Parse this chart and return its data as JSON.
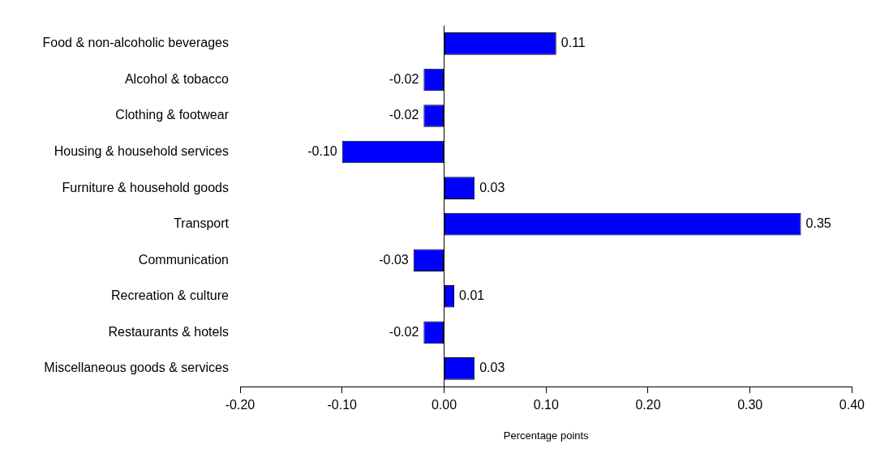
{
  "chart_data": {
    "type": "bar",
    "orientation": "horizontal",
    "xlabel": "Percentage points",
    "categories": [
      "Food & non-alcoholic beverages",
      "Alcohol & tobacco",
      "Clothing & footwear",
      "Housing & household services",
      "Furniture & household goods",
      "Transport",
      "Communication",
      "Recreation & culture",
      "Restaurants & hotels",
      "Miscellaneous goods & services"
    ],
    "values": [
      0.11,
      -0.02,
      -0.02,
      -0.1,
      0.03,
      0.35,
      -0.03,
      0.01,
      -0.02,
      0.03
    ],
    "value_labels": [
      "0.11",
      "-0.02",
      "-0.02",
      "-0.10",
      "0.03",
      "0.35",
      "-0.03",
      "0.01",
      "-0.02",
      "0.03"
    ],
    "color": "#0000ff",
    "xlim": [
      -0.2,
      0.4
    ],
    "xticks": [
      {
        "value": -0.2,
        "label": "-0.20"
      },
      {
        "value": -0.1,
        "label": "-0.10"
      },
      {
        "value": 0,
        "label": "0.00"
      },
      {
        "value": 0.1,
        "label": "0.10"
      },
      {
        "value": 0.2,
        "label": "0.20"
      },
      {
        "value": 0.3,
        "label": "0.30"
      },
      {
        "value": 0.4,
        "label": "0.40"
      }
    ],
    "ref_lines": [
      {
        "axis": "x",
        "value": 0,
        "color": "#000000"
      }
    ],
    "grid": false,
    "legend": false
  }
}
